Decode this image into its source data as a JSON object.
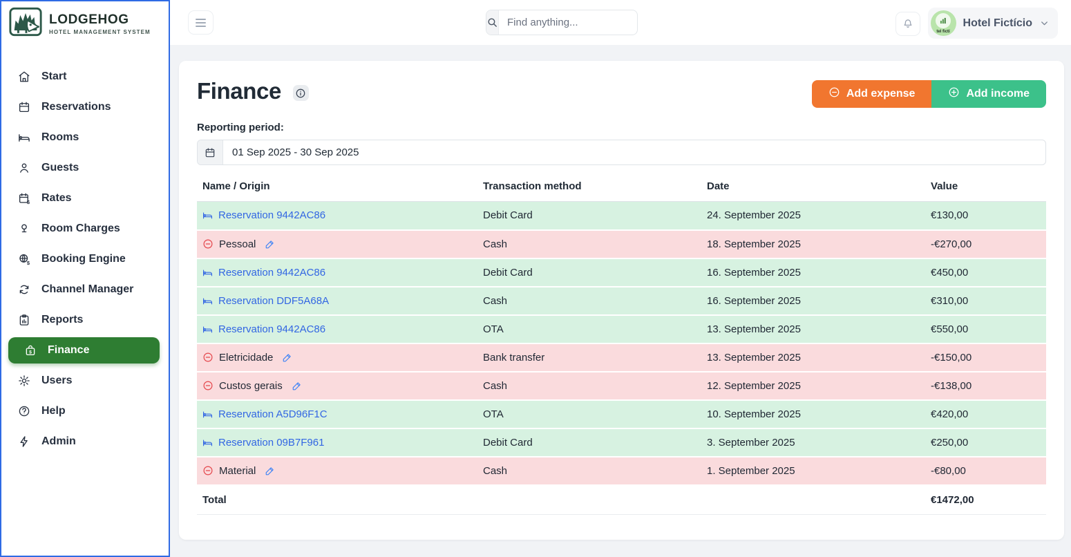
{
  "brand": {
    "name": "LODGEHOG",
    "tagline": "HOTEL MANAGEMENT SYSTEM"
  },
  "topbar": {
    "search_placeholder": "Find anything...",
    "user_name": "Hotel Fictício",
    "avatar_caption": "tel fictí"
  },
  "sidebar": {
    "items": [
      {
        "label": "Start",
        "icon": "home",
        "active": false
      },
      {
        "label": "Reservations",
        "icon": "calendar",
        "active": false
      },
      {
        "label": "Rooms",
        "icon": "bed",
        "active": false
      },
      {
        "label": "Guests",
        "icon": "person",
        "active": false
      },
      {
        "label": "Rates",
        "icon": "rates",
        "active": false
      },
      {
        "label": "Room Charges",
        "icon": "charges",
        "active": false
      },
      {
        "label": "Booking Engine",
        "icon": "globe",
        "active": false
      },
      {
        "label": "Channel Manager",
        "icon": "sync",
        "active": false
      },
      {
        "label": "Reports",
        "icon": "report",
        "active": false
      },
      {
        "label": "Finance",
        "icon": "finance",
        "active": true
      },
      {
        "label": "Users",
        "icon": "gear",
        "active": false
      },
      {
        "label": "Help",
        "icon": "help",
        "active": false
      },
      {
        "label": "Admin",
        "icon": "bolt",
        "active": false
      }
    ]
  },
  "page": {
    "title": "Finance",
    "buttons": {
      "add_expense": "Add expense",
      "add_income": "Add income"
    },
    "reporting_period_label": "Reporting period:",
    "reporting_period_value": "01 Sep 2025 - 30 Sep 2025"
  },
  "table": {
    "columns": [
      "Name / Origin",
      "Transaction method",
      "Date",
      "Value"
    ],
    "rows": [
      {
        "type": "income",
        "name": "Reservation 9442AC86",
        "method": "Debit Card",
        "date": "24. September 2025",
        "value": "€130,00"
      },
      {
        "type": "expense",
        "name": "Pessoal",
        "method": "Cash",
        "date": "18. September 2025",
        "value": "-€270,00"
      },
      {
        "type": "income",
        "name": "Reservation 9442AC86",
        "method": "Debit Card",
        "date": "16. September 2025",
        "value": "€450,00"
      },
      {
        "type": "income",
        "name": "Reservation DDF5A68A",
        "method": "Cash",
        "date": "16. September 2025",
        "value": "€310,00"
      },
      {
        "type": "income",
        "name": "Reservation 9442AC86",
        "method": "OTA",
        "date": "13. September 2025",
        "value": "€550,00"
      },
      {
        "type": "expense",
        "name": "Eletricidade",
        "method": "Bank transfer",
        "date": "13. September 2025",
        "value": "-€150,00"
      },
      {
        "type": "expense",
        "name": "Custos gerais",
        "method": "Cash",
        "date": "12. September 2025",
        "value": "-€138,00"
      },
      {
        "type": "income",
        "name": "Reservation A5D96F1C",
        "method": "OTA",
        "date": "10. September 2025",
        "value": "€420,00"
      },
      {
        "type": "income",
        "name": "Reservation 09B7F961",
        "method": "Debit Card",
        "date": "3. September 2025",
        "value": "€250,00"
      },
      {
        "type": "expense",
        "name": "Material",
        "method": "Cash",
        "date": "1. September 2025",
        "value": "-€80,00"
      }
    ],
    "total_label": "Total",
    "total_value": "€1472,00"
  },
  "colors": {
    "sidebar_active": "#2e7d32",
    "focus_outline": "#2f6be4",
    "income_row_bg": "#d7f2e1",
    "expense_row_bg": "#fadbdd",
    "expense_icon": "#e5484d",
    "link_blue": "#3266e3",
    "btn_expense": "#f1762f",
    "btn_income": "#3cc18a",
    "logo_green": "#2c5848",
    "avatar_green": "#b9e4ab"
  }
}
